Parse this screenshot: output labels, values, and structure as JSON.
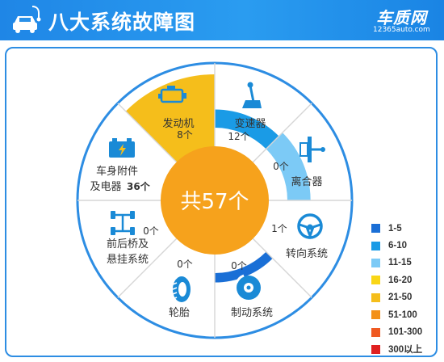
{
  "header": {
    "title": "八大系统故障图",
    "brand": "车质网",
    "brand_url": "12365auto.com"
  },
  "center": {
    "label": "共57个"
  },
  "chart_data": {
    "type": "pie",
    "title": "八大系统故障图",
    "total": 57,
    "segments": [
      {
        "name": "发动机",
        "value": 8,
        "value_label": "8个",
        "icon": "engine-icon",
        "color": "#1a9be6"
      },
      {
        "name": "变速器",
        "value": 12,
        "value_label": "12个",
        "icon": "gear-shift-icon",
        "color": "#7ccaf6"
      },
      {
        "name": "离合器",
        "value": 0,
        "value_label": "0个",
        "icon": "clutch-icon",
        "color": ""
      },
      {
        "name": "转向系统",
        "value": 1,
        "value_label": "1个",
        "icon": "steering-wheel-icon",
        "color": "#1a6fd6"
      },
      {
        "name": "制动系统",
        "value": 0,
        "value_label": "0个",
        "icon": "brake-disc-icon",
        "color": ""
      },
      {
        "name": "轮胎",
        "value": 0,
        "value_label": "0个",
        "icon": "tire-icon",
        "color": ""
      },
      {
        "name": "前后桥及悬挂系统",
        "value": 0,
        "value_label": "0个",
        "icon": "suspension-icon",
        "color": ""
      },
      {
        "name": "车身附件及电器",
        "value": 36,
        "value_label": "36个",
        "icon": "battery-icon",
        "color": "#f5be1b"
      }
    ],
    "legend": [
      {
        "label": "1-5",
        "color": "#1a6fd6"
      },
      {
        "label": "6-10",
        "color": "#1a9be6"
      },
      {
        "label": "11-15",
        "color": "#7ccaf6"
      },
      {
        "label": "16-20",
        "color": "#f9d616"
      },
      {
        "label": "21-50",
        "color": "#f5be1b"
      },
      {
        "label": "51-100",
        "color": "#f39019"
      },
      {
        "label": "101-300",
        "color": "#ef5a22"
      },
      {
        "label": "300以上",
        "color": "#e02020"
      }
    ],
    "legend_position": "bottom-right"
  }
}
